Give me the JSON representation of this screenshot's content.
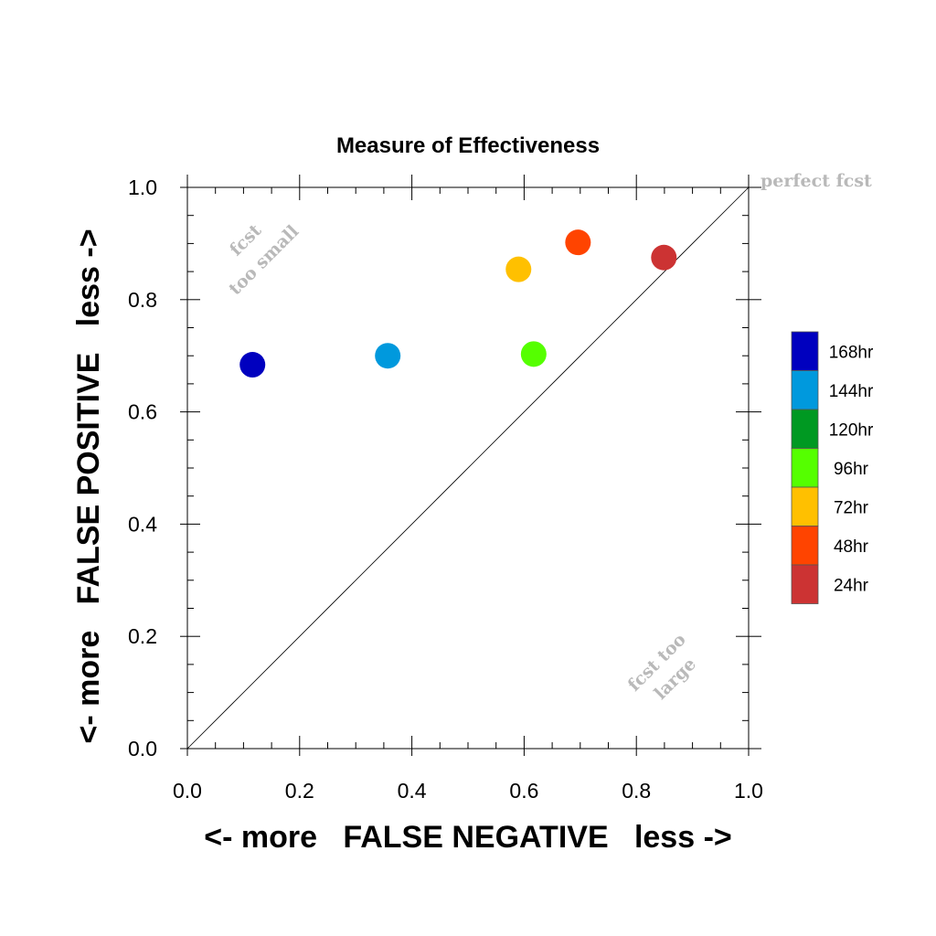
{
  "chart_data": {
    "type": "scatter",
    "title": "Measure of Effectiveness",
    "xlabel": "<- more   FALSE NEGATIVE   less ->",
    "ylabel": "<- more   FALSE POSITIVE   less ->",
    "xlim": [
      0.0,
      1.0
    ],
    "ylim": [
      0.0,
      1.0
    ],
    "xticks": [
      "0.0",
      "0.2",
      "0.4",
      "0.6",
      "0.8",
      "1.0"
    ],
    "yticks": [
      "0.0",
      "0.2",
      "0.4",
      "0.6",
      "0.8",
      "1.0"
    ],
    "grid": false,
    "diagonal_line": true,
    "annotations": {
      "perfect": "perfect fcst",
      "small_line1": "fcst",
      "small_line2": "too small",
      "large_line1": "fcst too",
      "large_line2": "large"
    },
    "legend_position": "right",
    "legend": [
      {
        "label": "168hr",
        "color": "#0000bf"
      },
      {
        "label": "144hr",
        "color": "#0099dd"
      },
      {
        "label": "120hr",
        "color": "#009922"
      },
      {
        "label": "96hr",
        "color": "#55ff00"
      },
      {
        "label": "72hr",
        "color": "#ffc000"
      },
      {
        "label": "48hr",
        "color": "#ff4400"
      },
      {
        "label": "24hr",
        "color": "#cc3333"
      }
    ],
    "points": [
      {
        "name": "168hr",
        "x": 0.116,
        "y": 0.684,
        "color": "#0000bf"
      },
      {
        "name": "144hr",
        "x": 0.357,
        "y": 0.7,
        "color": "#0099dd"
      },
      {
        "name": "96hr",
        "x": 0.617,
        "y": 0.703,
        "color": "#55ff00"
      },
      {
        "name": "72hr",
        "x": 0.59,
        "y": 0.854,
        "color": "#ffc000"
      },
      {
        "name": "48hr",
        "x": 0.696,
        "y": 0.902,
        "color": "#ff4400"
      },
      {
        "name": "24hr",
        "x": 0.849,
        "y": 0.875,
        "color": "#cc3333"
      }
    ]
  }
}
